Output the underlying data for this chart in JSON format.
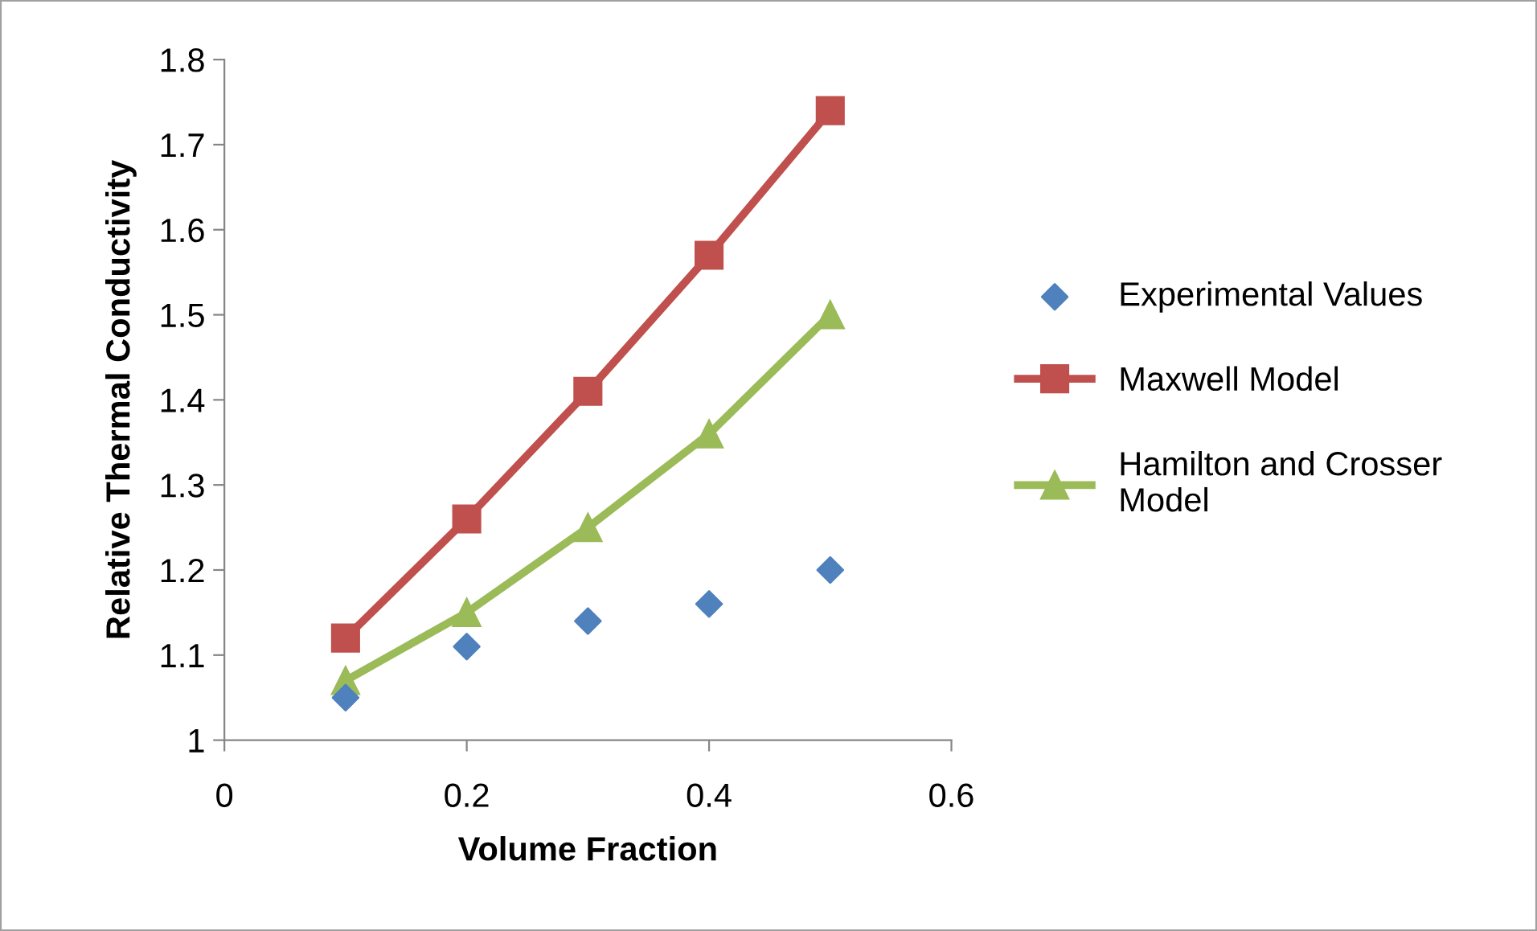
{
  "chart_data": {
    "type": "line",
    "xlabel": "Volume Fraction",
    "ylabel": "Relative Thermal Conductivity",
    "x": [
      0.1,
      0.2,
      0.3,
      0.4,
      0.5
    ],
    "series": [
      {
        "name": "Experimental Values",
        "type": "scatter",
        "marker": "diamond",
        "color": "#4f81bd",
        "values": [
          1.05,
          1.11,
          1.14,
          1.16,
          1.2
        ]
      },
      {
        "name": "Maxwell Model",
        "type": "line",
        "marker": "square",
        "color": "#c0504d",
        "values": [
          1.12,
          1.26,
          1.41,
          1.57,
          1.74
        ]
      },
      {
        "name": "Hamilton and Crosser Model",
        "type": "line",
        "marker": "triangle",
        "color": "#9bbb59",
        "values": [
          1.07,
          1.15,
          1.25,
          1.36,
          1.5
        ]
      }
    ],
    "xlim": [
      0,
      0.6
    ],
    "xticks": [
      0,
      0.2,
      0.4,
      0.6
    ],
    "ylim": [
      1,
      1.8
    ],
    "yticks": [
      1,
      1.1,
      1.2,
      1.3,
      1.4,
      1.5,
      1.6,
      1.7,
      1.8
    ],
    "grid": false,
    "legend": "right"
  }
}
